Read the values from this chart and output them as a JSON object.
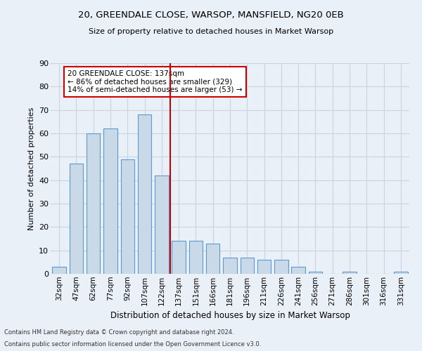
{
  "title": "20, GREENDALE CLOSE, WARSOP, MANSFIELD, NG20 0EB",
  "subtitle": "Size of property relative to detached houses in Market Warsop",
  "xlabel": "Distribution of detached houses by size in Market Warsop",
  "ylabel": "Number of detached properties",
  "categories": [
    "32sqm",
    "47sqm",
    "62sqm",
    "77sqm",
    "92sqm",
    "107sqm",
    "122sqm",
    "137sqm",
    "151sqm",
    "166sqm",
    "181sqm",
    "196sqm",
    "211sqm",
    "226sqm",
    "241sqm",
    "256sqm",
    "271sqm",
    "286sqm",
    "301sqm",
    "316sqm",
    "331sqm"
  ],
  "values": [
    3,
    47,
    60,
    62,
    49,
    68,
    42,
    14,
    14,
    13,
    7,
    7,
    6,
    6,
    3,
    1,
    0,
    1,
    0,
    0,
    1
  ],
  "bar_color": "#c9d9e8",
  "bar_edge_color": "#5b9bd5",
  "bar_width": 0.8,
  "vline_color": "#cc0000",
  "ylim": [
    0,
    90
  ],
  "yticks": [
    0,
    10,
    20,
    30,
    40,
    50,
    60,
    70,
    80,
    90
  ],
  "annotation_text": "20 GREENDALE CLOSE: 137sqm\n← 86% of detached houses are smaller (329)\n14% of semi-detached houses are larger (53) →",
  "annotation_box_color": "#cc0000",
  "grid_color": "#c8d4e0",
  "bg_color": "#eaf0f7",
  "footnote1": "Contains HM Land Registry data © Crown copyright and database right 2024.",
  "footnote2": "Contains public sector information licensed under the Open Government Licence v3.0."
}
